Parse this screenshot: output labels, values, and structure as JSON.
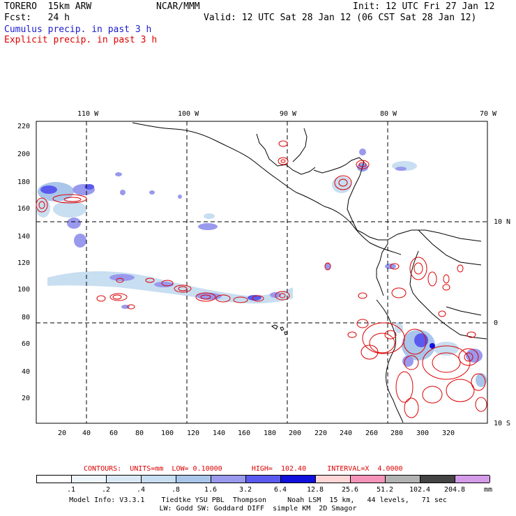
{
  "header": {
    "model": "TORERO  15km ARW",
    "org": "NCAR/MMM",
    "init": "Init: 12 UTC Fri 27 Jan 12",
    "fcst": "Fcst:   24 h",
    "valid": "Valid: 12 UTC Sat 28 Jan 12 (06 CST Sat 28 Jan 12)",
    "legend_cumulus": "Cumulus precip. in past 3 h",
    "legend_explicit": "Explicit precip. in past 3 h"
  },
  "map": {
    "lon_labels": [
      "110 W",
      "100 W",
      "90 W",
      "80 W",
      "70 W"
    ],
    "lat_labels": [
      "10 N",
      "0",
      "10 S"
    ],
    "y_ticks": [
      "220",
      "200",
      "180",
      "160",
      "140",
      "120",
      "100",
      "80",
      "60",
      "40",
      "20"
    ],
    "x_ticks": [
      "20",
      "40",
      "60",
      "80",
      "100",
      "120",
      "140",
      "160",
      "180",
      "200",
      "220",
      "240",
      "260",
      "280",
      "300",
      "320"
    ]
  },
  "contours_line": {
    "label": "CONTOURS:  UNITS=mm  LOW= 0.10000       HIGH=  102.40     INTERVAL=X  4.0000"
  },
  "colorbar": {
    "labels": [
      ".1",
      ".2",
      ".4",
      ".8",
      "1.6",
      "3.2",
      "6.4",
      "12.8",
      "25.6",
      "51.2",
      "102.4",
      "204.8"
    ],
    "unit": "mm",
    "colors": [
      "#ffffff",
      "#eef5fb",
      "#dbe9f7",
      "#c8def1",
      "#a9c6ea",
      "#9999ee",
      "#5a5aee",
      "#1111dd",
      "#ffd6d6",
      "#f594b8",
      "#b2b2b2",
      "#444444",
      "#d49be9"
    ]
  },
  "footer": {
    "line1": "Model Info: V3.3.1    Tiedtke YSU PBL  Thompson     Noah LSM  15 km,   44 levels,   71 sec",
    "line2": "LW: Godd SW: Goddard DIFF  simple KM  2D Smagor"
  }
}
